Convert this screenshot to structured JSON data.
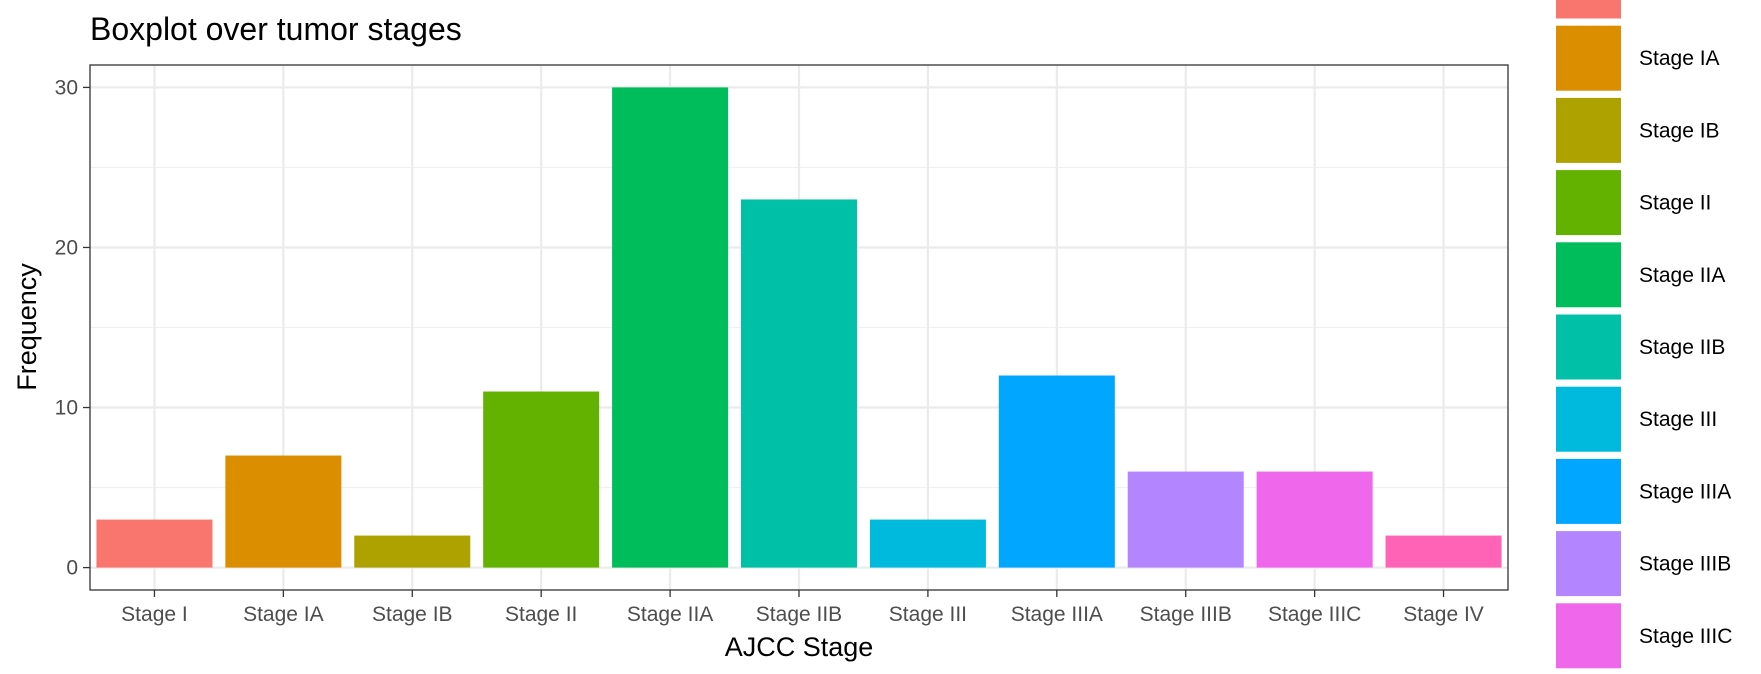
{
  "chart_data": {
    "type": "bar",
    "title": "Boxplot over tumor stages",
    "xlabel": "AJCC Stage",
    "ylabel": "Frequency",
    "categories": [
      "Stage I",
      "Stage IA",
      "Stage IB",
      "Stage II",
      "Stage IIA",
      "Stage IIB",
      "Stage III",
      "Stage IIIA",
      "Stage IIIB",
      "Stage IIIC",
      "Stage IV"
    ],
    "values": [
      3,
      7,
      2,
      11,
      30,
      23,
      3,
      12,
      6,
      6,
      2
    ],
    "colors": [
      "#F8766D",
      "#DB8E00",
      "#AEA200",
      "#64B200",
      "#00BD5C",
      "#00C1A7",
      "#00BADE",
      "#00A6FF",
      "#B385FF",
      "#EF67EB",
      "#FF63B6"
    ],
    "ylim": [
      -1.4,
      31.4
    ],
    "yticks": [
      0,
      10,
      20,
      30
    ],
    "grid": true,
    "legend": {
      "position": "right",
      "entries": [
        "Stage I",
        "Stage IA",
        "Stage IB",
        "Stage II",
        "Stage IIA",
        "Stage IIB",
        "Stage III",
        "Stage IIIA",
        "Stage IIIB",
        "Stage IIIC"
      ],
      "visible_labels": [
        "",
        "Stage IA",
        "Stage IB",
        "Stage II",
        "Stage IIA",
        "Stage IIB",
        "Stage III",
        "Stage IIIA",
        "Stage IIIB",
        "Stage IIIC"
      ]
    }
  }
}
